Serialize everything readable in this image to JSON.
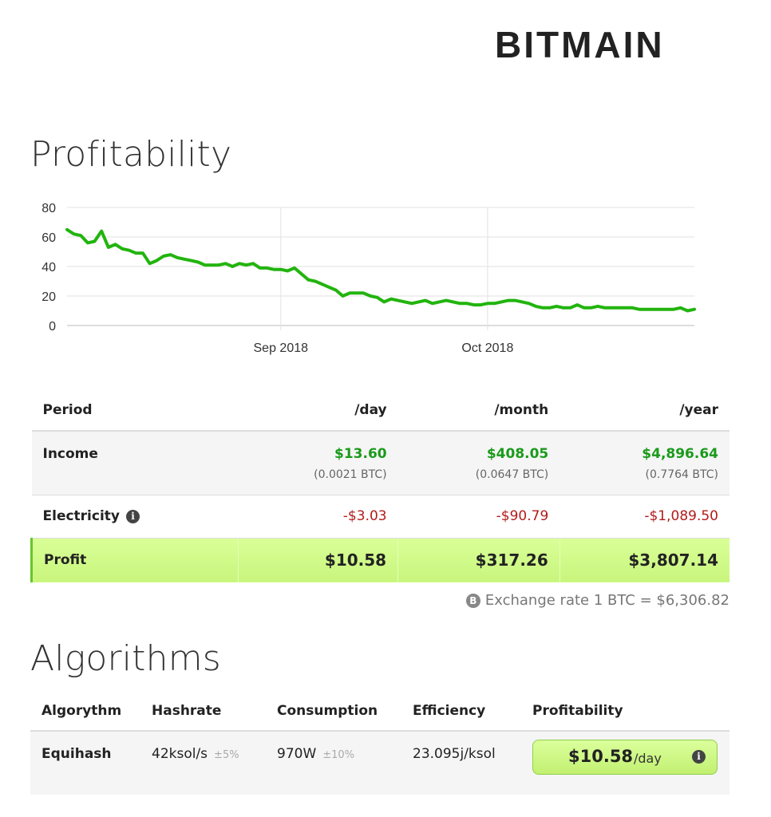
{
  "brand": {
    "logo_text": "BITMAIN"
  },
  "profitability": {
    "title": "Profitability",
    "chart_data": {
      "type": "line",
      "x": [
        "2018-08-01",
        "2018-08-02",
        "2018-08-03",
        "2018-08-04",
        "2018-08-05",
        "2018-08-06",
        "2018-08-07",
        "2018-08-08",
        "2018-08-09",
        "2018-08-10",
        "2018-08-11",
        "2018-08-12",
        "2018-08-13",
        "2018-08-14",
        "2018-08-15",
        "2018-08-16",
        "2018-08-17",
        "2018-08-18",
        "2018-08-19",
        "2018-08-20",
        "2018-08-21",
        "2018-08-22",
        "2018-08-23",
        "2018-08-24",
        "2018-08-25",
        "2018-08-26",
        "2018-08-27",
        "2018-08-28",
        "2018-08-29",
        "2018-08-30",
        "2018-08-31",
        "2018-09-01",
        "2018-09-02",
        "2018-09-03",
        "2018-09-04",
        "2018-09-05",
        "2018-09-06",
        "2018-09-07",
        "2018-09-08",
        "2018-09-09",
        "2018-09-10",
        "2018-09-11",
        "2018-09-12",
        "2018-09-13",
        "2018-09-14",
        "2018-09-15",
        "2018-09-16",
        "2018-09-17",
        "2018-09-18",
        "2018-09-19",
        "2018-09-20",
        "2018-09-21",
        "2018-09-22",
        "2018-09-23",
        "2018-09-24",
        "2018-09-25",
        "2018-09-26",
        "2018-09-27",
        "2018-09-28",
        "2018-09-29",
        "2018-09-30",
        "2018-10-01",
        "2018-10-02",
        "2018-10-03",
        "2018-10-04",
        "2018-10-05",
        "2018-10-06",
        "2018-10-07",
        "2018-10-08",
        "2018-10-09",
        "2018-10-10",
        "2018-10-11",
        "2018-10-12",
        "2018-10-13",
        "2018-10-14",
        "2018-10-15",
        "2018-10-16",
        "2018-10-17",
        "2018-10-18",
        "2018-10-19",
        "2018-10-20",
        "2018-10-21",
        "2018-10-22",
        "2018-10-23",
        "2018-10-24",
        "2018-10-25",
        "2018-10-26",
        "2018-10-27",
        "2018-10-28",
        "2018-10-29",
        "2018-10-30",
        "2018-10-31"
      ],
      "series": [
        {
          "values": [
            65,
            62,
            61,
            56,
            57,
            64,
            53,
            55,
            52,
            51,
            49,
            49,
            42,
            44,
            47,
            48,
            46,
            45,
            44,
            43,
            41,
            41,
            41,
            42,
            40,
            42,
            41,
            42,
            39,
            39,
            38,
            38,
            37,
            39,
            35,
            31,
            30,
            28,
            26,
            24,
            20,
            22,
            22,
            22,
            20,
            19,
            16,
            18,
            17,
            16,
            15,
            16,
            17,
            15,
            16,
            17,
            16,
            15,
            15,
            14,
            14,
            15,
            15,
            16,
            17,
            17,
            16,
            15,
            13,
            12,
            12,
            13,
            12,
            12,
            14,
            12,
            12,
            13,
            12,
            12,
            12,
            12,
            12,
            11,
            11,
            11,
            11,
            11,
            11,
            12,
            10,
            11
          ]
        }
      ],
      "xticks": [
        "Sep 2018",
        "Oct 2018"
      ],
      "yticks": [
        0,
        20,
        40,
        60,
        80
      ],
      "ylim": [
        0,
        80
      ],
      "color": "#22b40e",
      "grid": true
    },
    "table": {
      "headers": {
        "period": "Period",
        "day": "/day",
        "month": "/month",
        "year": "/year"
      },
      "income": {
        "label": "Income",
        "day": "$13.60",
        "month": "$408.05",
        "year": "$4,896.64",
        "day_btc": "(0.0021 BTC)",
        "month_btc": "(0.0647 BTC)",
        "year_btc": "(0.7764 BTC)"
      },
      "electricity": {
        "label": "Electricity",
        "day": "-$3.03",
        "month": "-$90.79",
        "year": "-$1,089.50"
      },
      "profit": {
        "label": "Profit",
        "day": "$10.58",
        "month": "$317.26",
        "year": "$3,807.14"
      }
    },
    "exchange_rate": "Exchange rate 1 BTC = $6,306.82"
  },
  "algorithms": {
    "title": "Algorithms",
    "headers": {
      "algorithm": "Algorythm",
      "hashrate": "Hashrate",
      "consumption": "Consumption",
      "efficiency": "Efficiency",
      "profitability": "Profitability"
    },
    "rows": [
      {
        "algorithm": "Equihash",
        "hashrate": "42ksol/s",
        "hashrate_tol": "±5%",
        "consumption": "970W",
        "consumption_tol": "±10%",
        "efficiency": "23.095j/ksol",
        "profit_value": "$10.58",
        "profit_unit": "/day"
      }
    ]
  },
  "colors": {
    "income": "#1a9a1a",
    "electricity": "#b31b1b",
    "profit_bg": "#d4fb8e",
    "line": "#22b40e"
  },
  "icons": {
    "info": "info-circle-icon",
    "bitcoin": "bitcoin-icon"
  }
}
